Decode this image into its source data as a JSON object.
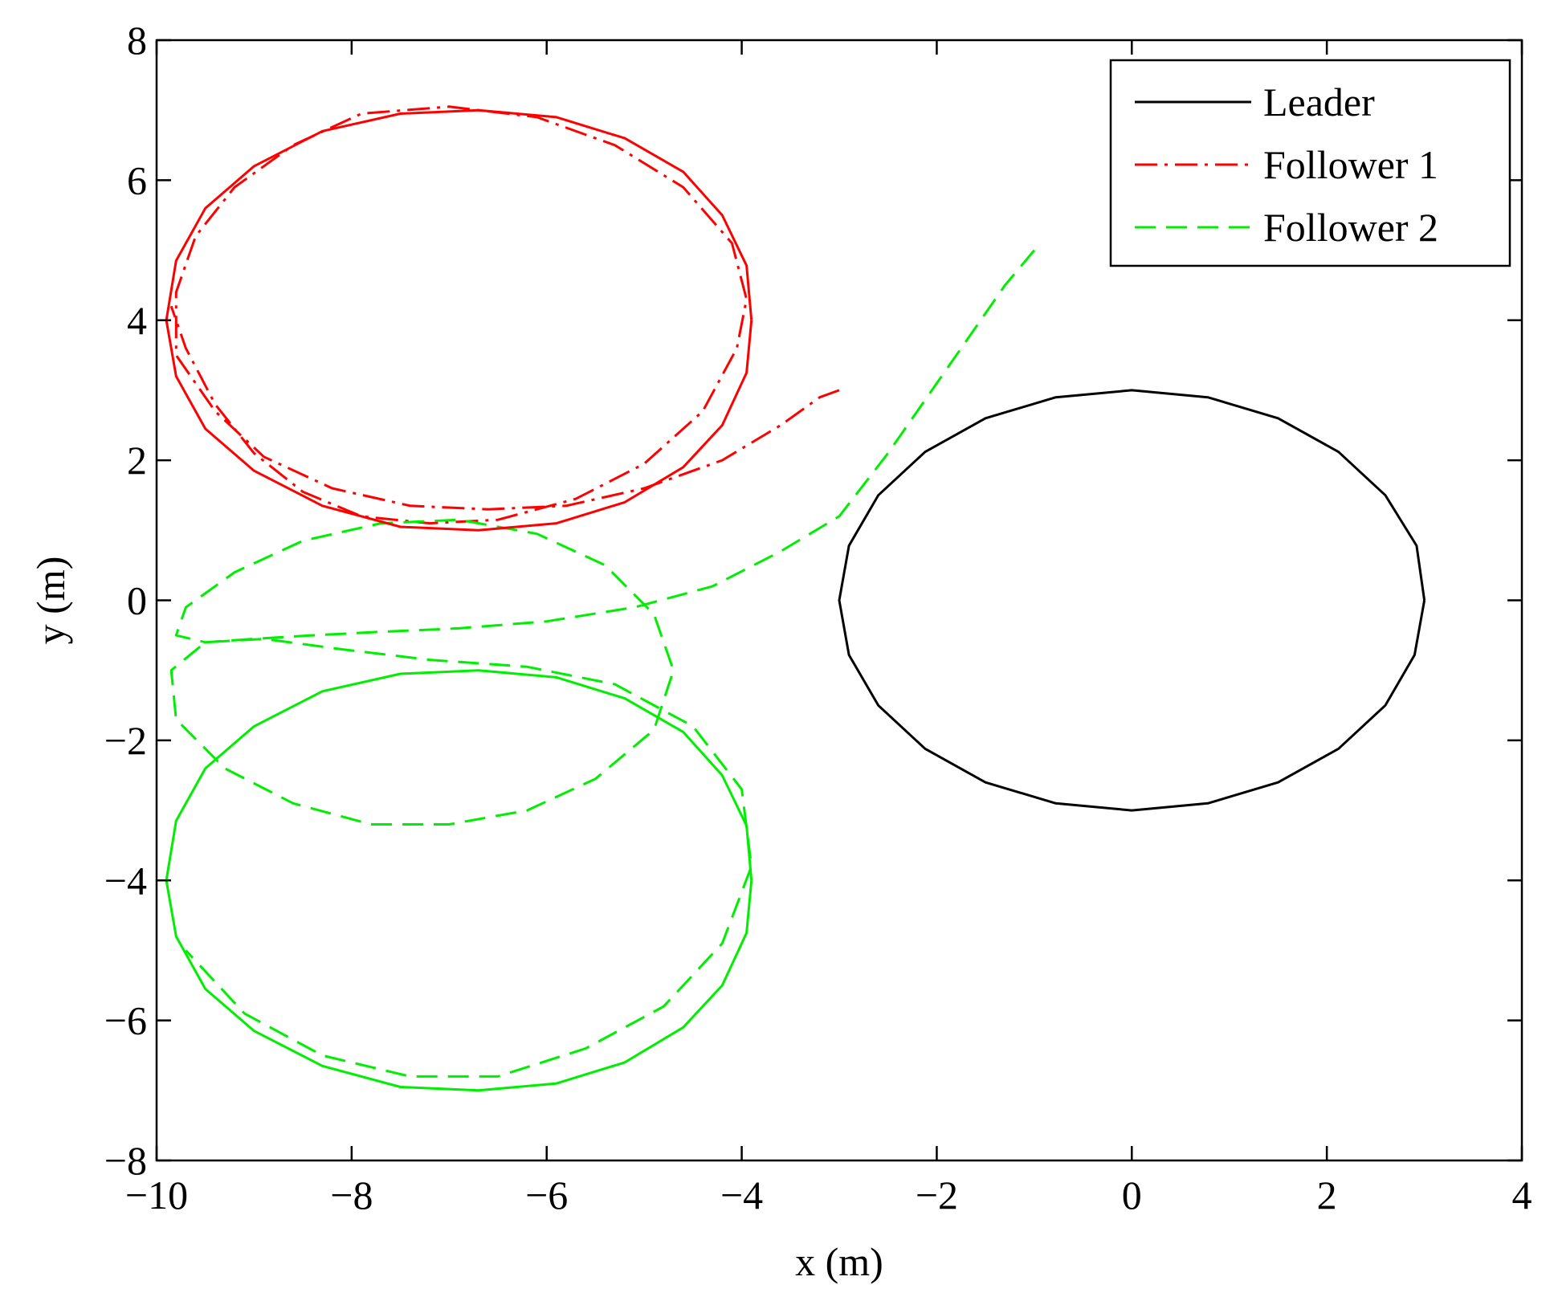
{
  "chart_data": {
    "type": "line",
    "title": "",
    "xlabel": "x (m)",
    "ylabel": "y (m)",
    "xlim": [
      -10,
      4
    ],
    "ylim": [
      -8,
      8
    ],
    "xticks": [
      -10,
      -8,
      -6,
      -4,
      -2,
      0,
      2,
      4
    ],
    "yticks": [
      -8,
      -6,
      -4,
      -2,
      0,
      2,
      4,
      6,
      8
    ],
    "xtick_labels": [
      "−10",
      "−8",
      "−6",
      "−4",
      "−2",
      "0",
      "2",
      "4"
    ],
    "ytick_labels": [
      "−8",
      "−6",
      "−4",
      "−2",
      "0",
      "2",
      "4",
      "6",
      "8"
    ],
    "grid": false,
    "legend_position": "top-right",
    "series": [
      {
        "name": "Leader",
        "color": "#000000",
        "style": "solid",
        "segments": [
          {
            "x": [
              3.0,
              2.92,
              2.6,
              2.12,
              1.5,
              0.78,
              0.0,
              -0.78,
              -1.5,
              -2.12,
              -2.6,
              -2.9,
              -3.0,
              -2.9,
              -2.6,
              -2.12,
              -1.5,
              -0.78,
              0.0,
              0.78,
              1.5,
              2.12,
              2.6,
              2.9,
              3.0
            ],
            "y": [
              0.0,
              0.78,
              1.5,
              2.12,
              2.6,
              2.9,
              3.0,
              2.9,
              2.6,
              2.12,
              1.5,
              0.78,
              0.0,
              -0.78,
              -1.5,
              -2.12,
              -2.6,
              -2.9,
              -3.0,
              -2.9,
              -2.6,
              -2.12,
              -1.5,
              -0.78,
              0.0
            ]
          }
        ]
      },
      {
        "name": "Follower 1",
        "color": "#ff0000",
        "style": "dashdot",
        "segments": [
          {
            "x": [
              -3.0,
              -3.2,
              -3.6,
              -4.2,
              -5.0,
              -5.8,
              -6.6,
              -7.4,
              -8.2,
              -8.9,
              -9.4,
              -9.8,
              -9.8,
              -9.6,
              -9.2,
              -8.6,
              -7.9,
              -7.0,
              -6.1,
              -5.3,
              -4.6,
              -4.1,
              -3.95,
              -4.05,
              -4.4,
              -5.0,
              -5.7,
              -6.5,
              -7.2,
              -7.9,
              -8.5,
              -9.0,
              -9.4,
              -9.7,
              -9.85
            ],
            "y": [
              3.0,
              2.9,
              2.5,
              2.0,
              1.6,
              1.35,
              1.3,
              1.35,
              1.6,
              2.05,
              2.7,
              3.5,
              4.4,
              5.2,
              5.9,
              6.5,
              6.95,
              7.05,
              6.9,
              6.5,
              5.9,
              5.1,
              4.3,
              3.6,
              2.7,
              1.95,
              1.45,
              1.15,
              1.1,
              1.2,
              1.55,
              2.1,
              2.8,
              3.6,
              4.2
            ]
          }
        ]
      },
      {
        "name": "Follower 2",
        "color": "#00ee00",
        "style": "dashed",
        "segments": [
          {
            "x": [
              -1.0,
              -1.3,
              -1.7,
              -2.1,
              -2.5,
              -3.0,
              -3.6,
              -4.3,
              -5.1,
              -6.0,
              -6.9,
              -7.7,
              -8.4,
              -9.0,
              -9.5,
              -9.8,
              -9.7,
              -9.2,
              -8.5,
              -7.7,
              -6.9,
              -6.1,
              -5.4,
              -4.9,
              -4.7,
              -4.9,
              -5.5,
              -6.2,
              -7.0,
              -7.8,
              -8.6,
              -9.3,
              -9.8,
              -9.85,
              -9.5,
              -8.9,
              -8.1,
              -7.2,
              -6.2,
              -5.3,
              -4.5,
              -4.0,
              -3.9,
              -4.2,
              -4.8,
              -5.6,
              -6.5,
              -7.4,
              -8.3,
              -9.1,
              -9.7
            ],
            "y": [
              5.0,
              4.5,
              3.7,
              2.9,
              2.1,
              1.2,
              0.7,
              0.2,
              -0.1,
              -0.3,
              -0.4,
              -0.45,
              -0.5,
              -0.55,
              -0.6,
              -0.5,
              -0.1,
              0.4,
              0.85,
              1.1,
              1.15,
              0.95,
              0.5,
              -0.2,
              -1.0,
              -1.85,
              -2.55,
              -3.0,
              -3.2,
              -3.2,
              -2.9,
              -2.4,
              -1.7,
              -1.0,
              -0.6,
              -0.55,
              -0.7,
              -0.85,
              -0.95,
              -1.2,
              -1.8,
              -2.7,
              -3.8,
              -4.9,
              -5.8,
              -6.4,
              -6.8,
              -6.8,
              -6.5,
              -5.9,
              -5.0
            ]
          }
        ]
      },
      {
        "name": "",
        "color": "#ff0000",
        "style": "solid",
        "segments": [
          {
            "x": [
              -3.9,
              -3.95,
              -4.2,
              -4.6,
              -5.2,
              -5.9,
              -6.7,
              -7.5,
              -8.3,
              -9.0,
              -9.5,
              -9.8,
              -9.9,
              -9.8,
              -9.5,
              -9.0,
              -8.3,
              -7.5,
              -6.7,
              -5.9,
              -5.2,
              -4.6,
              -4.2,
              -3.95,
              -3.9
            ],
            "y": [
              4.0,
              4.78,
              5.5,
              6.12,
              6.6,
              6.9,
              7.0,
              6.95,
              6.7,
              6.2,
              5.6,
              4.85,
              4.0,
              3.2,
              2.45,
              1.85,
              1.35,
              1.05,
              1.0,
              1.1,
              1.4,
              1.9,
              2.5,
              3.25,
              4.0
            ]
          }
        ]
      },
      {
        "name": "",
        "color": "#00ee00",
        "style": "solid",
        "segments": [
          {
            "x": [
              -3.9,
              -3.95,
              -4.2,
              -4.6,
              -5.2,
              -5.9,
              -6.7,
              -7.5,
              -8.3,
              -9.0,
              -9.5,
              -9.8,
              -9.9,
              -9.8,
              -9.5,
              -9.0,
              -8.3,
              -7.5,
              -6.7,
              -5.9,
              -5.2,
              -4.6,
              -4.2,
              -3.95,
              -3.9
            ],
            "y": [
              -4.0,
              -3.22,
              -2.5,
              -1.88,
              -1.4,
              -1.1,
              -1.0,
              -1.05,
              -1.3,
              -1.8,
              -2.4,
              -3.15,
              -4.0,
              -4.8,
              -5.55,
              -6.15,
              -6.65,
              -6.95,
              -7.0,
              -6.9,
              -6.6,
              -6.1,
              -5.5,
              -4.75,
              -4.0
            ]
          }
        ]
      }
    ]
  }
}
